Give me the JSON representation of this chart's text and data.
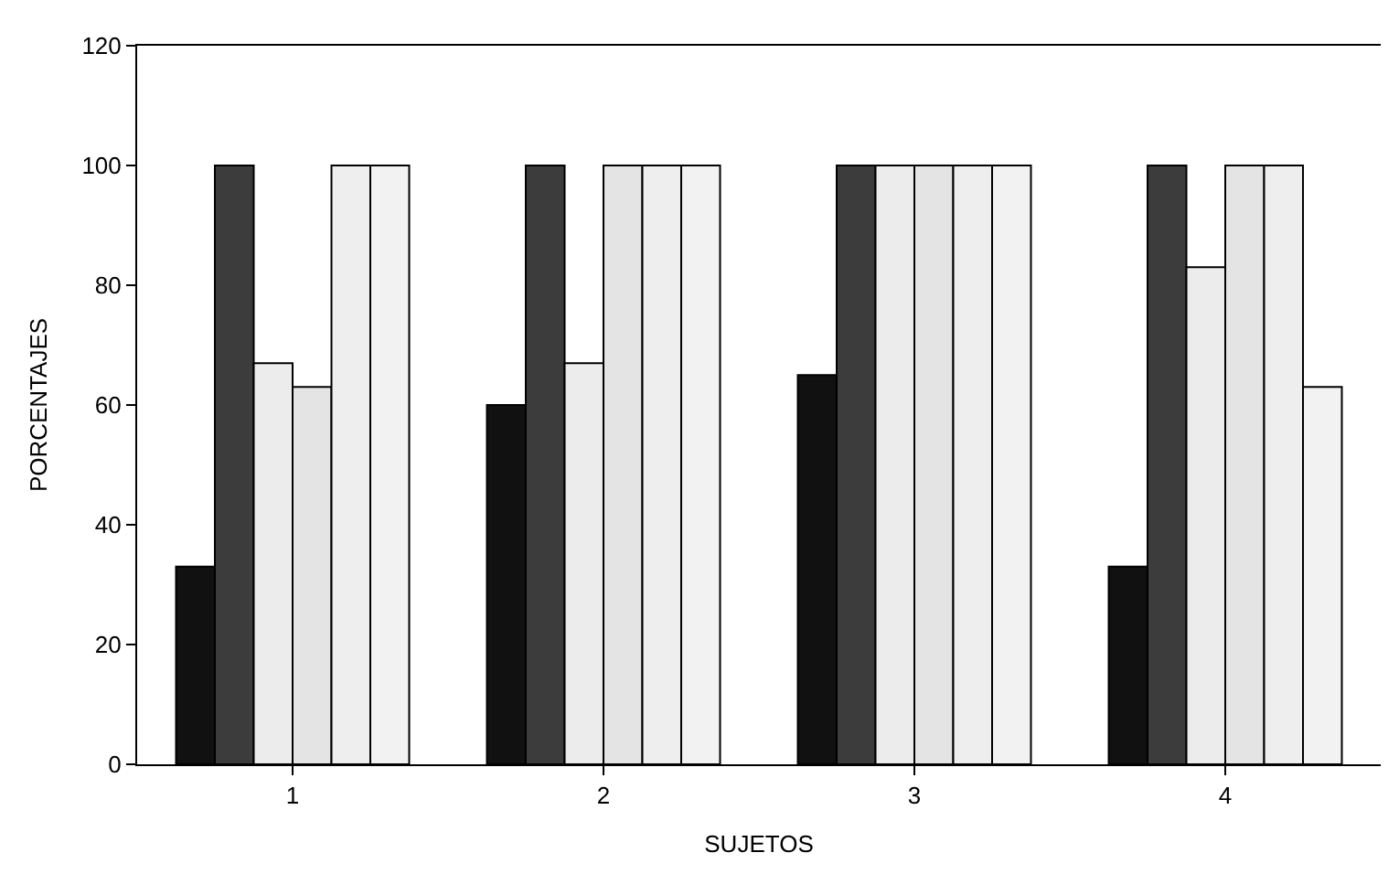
{
  "chart_data": {
    "type": "bar",
    "xlabel": "SUJETOS",
    "ylabel": "PORCENTAJES",
    "categories": [
      "1",
      "2",
      "3",
      "4"
    ],
    "series": [
      {
        "color": "#111111",
        "values": [
          33,
          60,
          65,
          33
        ]
      },
      {
        "color": "#3c3c3c",
        "values": [
          100,
          100,
          100,
          100
        ]
      },
      {
        "color": "#ececec",
        "values": [
          67,
          67,
          100,
          83
        ]
      },
      {
        "color": "#e4e4e4",
        "values": [
          63,
          100,
          100,
          100
        ]
      },
      {
        "color": "#eeeeee",
        "values": [
          100,
          100,
          100,
          100
        ]
      },
      {
        "color": "#f2f2f2",
        "values": [
          100,
          100,
          100,
          63
        ]
      }
    ],
    "ylim": [
      0,
      120
    ],
    "yticks": [
      0,
      20,
      40,
      60,
      80,
      100,
      120
    ]
  }
}
